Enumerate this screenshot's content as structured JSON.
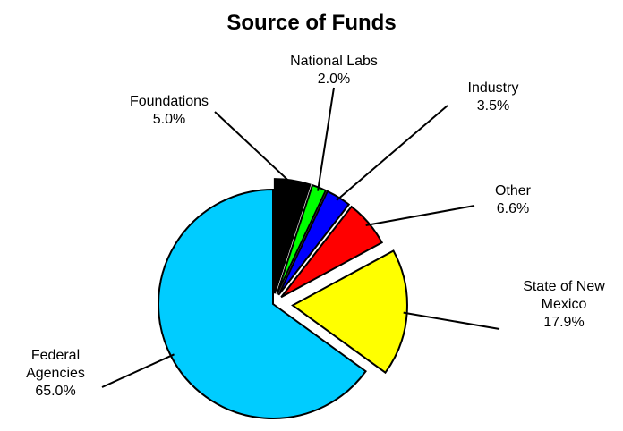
{
  "chart_data": {
    "type": "pie",
    "title": "Source of Funds",
    "categories": [
      "Foundations",
      "National Labs",
      "Industry",
      "Other",
      "State of New Mexico",
      "Federal Agencies"
    ],
    "values": [
      5.0,
      2.0,
      3.5,
      6.6,
      17.9,
      65.0
    ],
    "value_labels": [
      "5.0%",
      "2.0%",
      "3.5%",
      "6.6%",
      "17.9%",
      "65.0%"
    ],
    "colors": [
      "#000000",
      "#00ff00",
      "#0000ff",
      "#ff0000",
      "#ffff00",
      "#00ccff"
    ]
  }
}
